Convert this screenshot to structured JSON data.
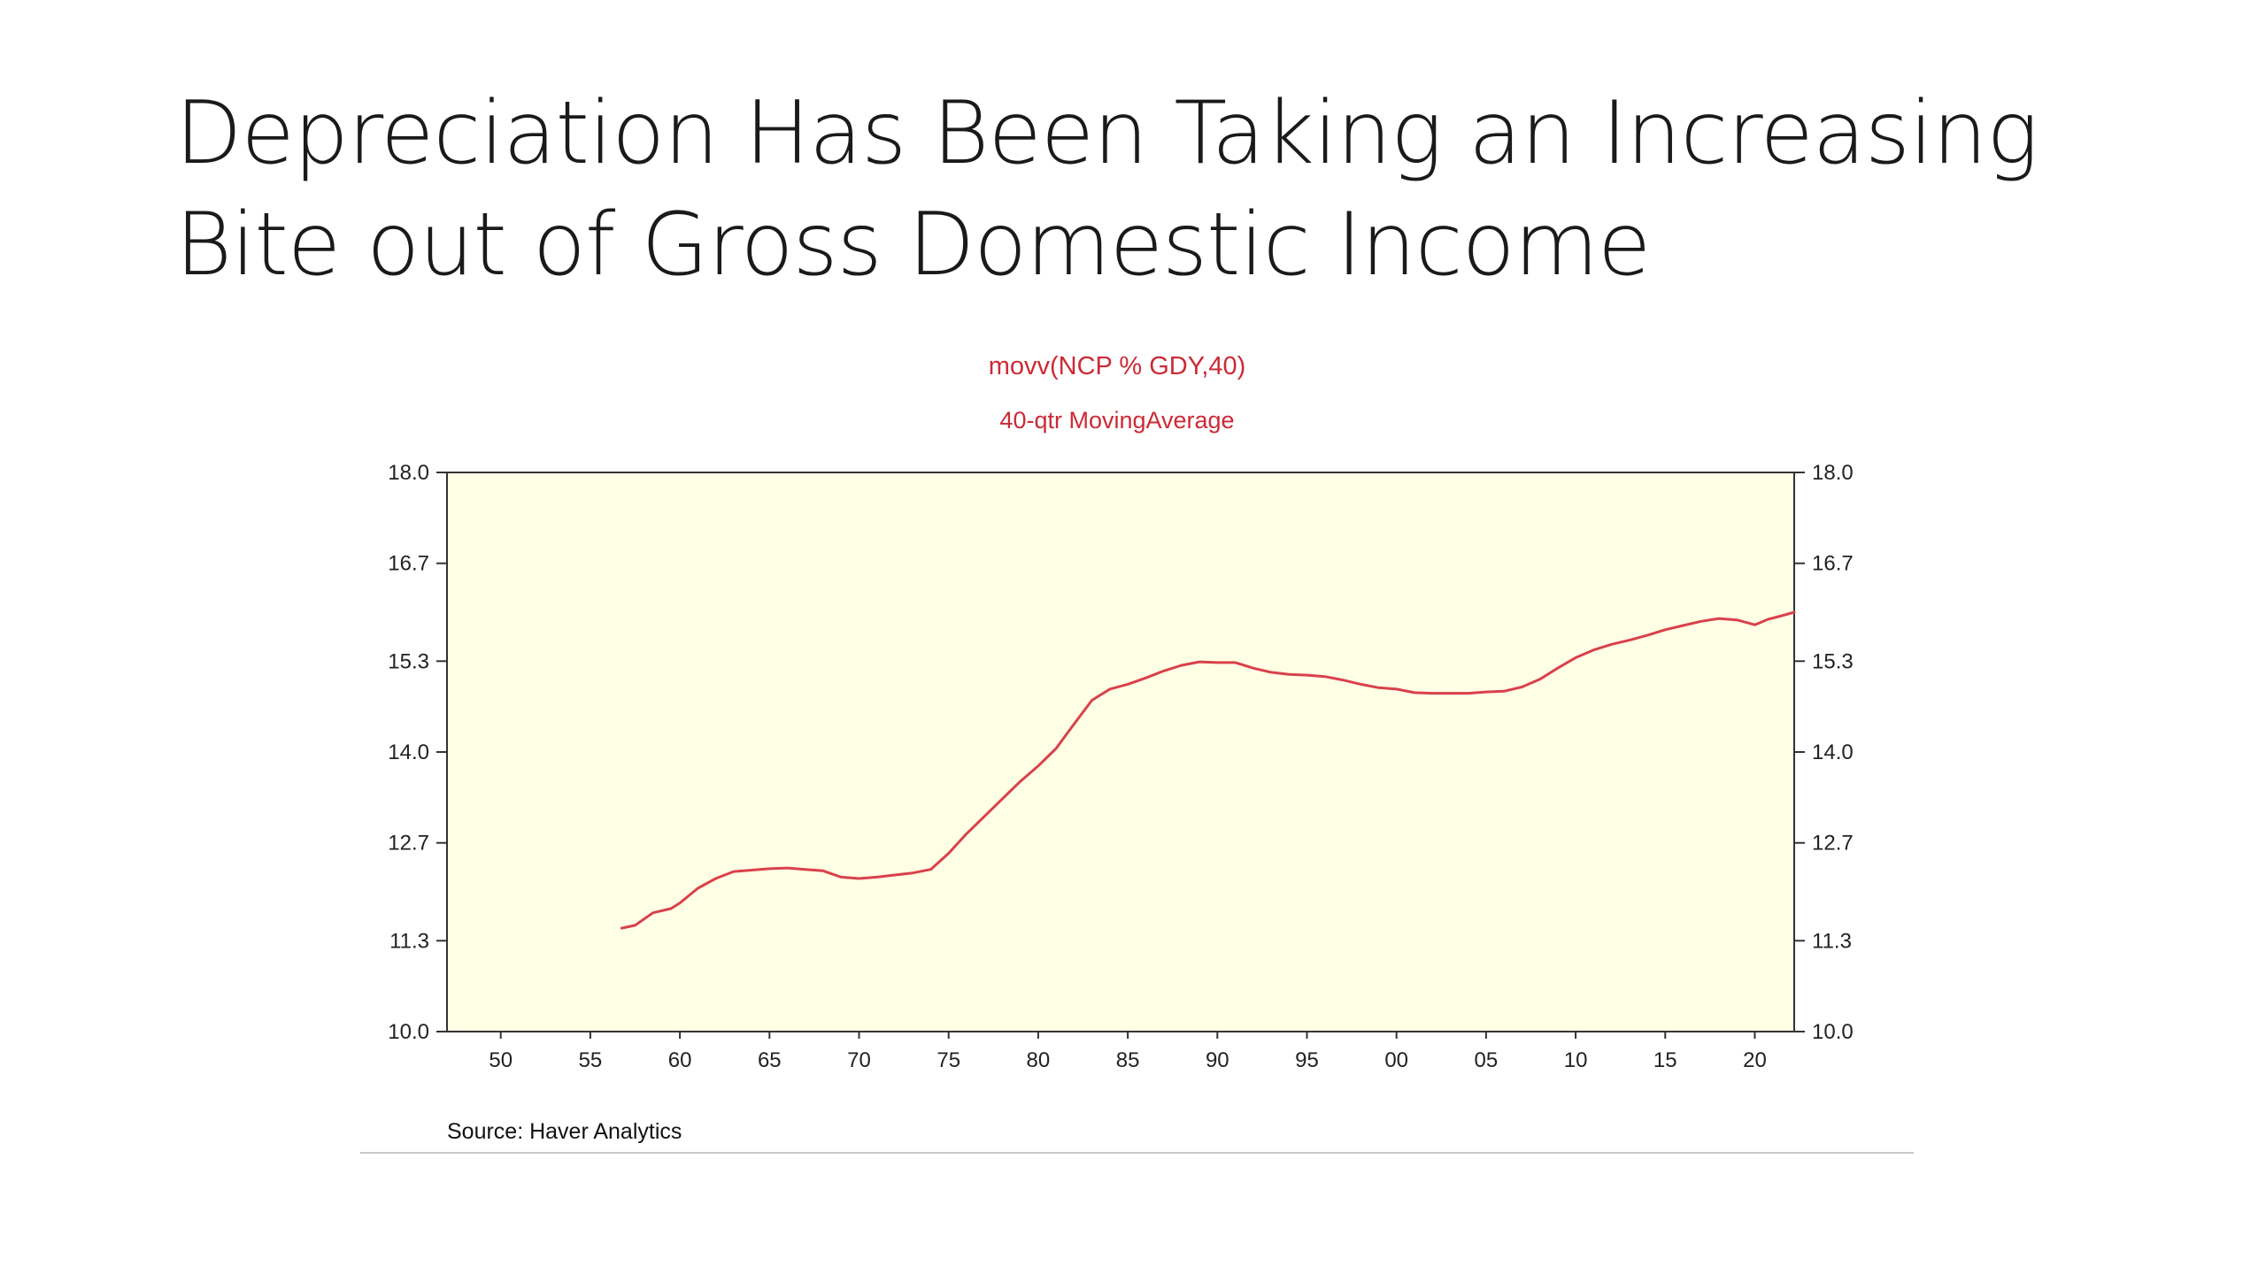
{
  "slide": {
    "title_line1": "Depreciation Has Been Taking an Increasing",
    "title_line2": "Bite out of Gross Domestic Income",
    "source": "Source:  Haver Analytics"
  },
  "colors": {
    "line": "#d9414b",
    "plot_background": "#ffffe5",
    "title": "#cc2a36",
    "axis": "#333333"
  },
  "chart_data": {
    "type": "line",
    "title": "movv(NCP % GDY,40)",
    "subtitle": "40-qtr MovingAverage",
    "xlabel": "",
    "ylabel": "",
    "xlim": [
      1947,
      2022.2
    ],
    "ylim": [
      10.0,
      18.0
    ],
    "y_ticks": [
      10.0,
      11.3,
      12.7,
      14.0,
      15.3,
      16.7,
      18.0
    ],
    "y_tick_labels": [
      "10.0",
      "11.3",
      "12.7",
      "14.0",
      "15.3",
      "16.7",
      "18.0"
    ],
    "x_ticks": [
      1950,
      1955,
      1960,
      1965,
      1970,
      1975,
      1980,
      1985,
      1990,
      1995,
      2000,
      2005,
      2010,
      2015,
      2020
    ],
    "x_tick_labels": [
      "50",
      "55",
      "60",
      "65",
      "70",
      "75",
      "80",
      "85",
      "90",
      "95",
      "00",
      "05",
      "10",
      "15",
      "20"
    ],
    "right_axis": true,
    "grid": false,
    "series": [
      {
        "x": [
          1956.75,
          1957.5,
          1958.5,
          1959.5,
          1960,
          1961,
          1962,
          1963,
          1964,
          1965,
          1966,
          1967,
          1968,
          1969,
          1970,
          1971,
          1972,
          1973,
          1974,
          1975,
          1976,
          1977,
          1978,
          1979,
          1980,
          1981,
          1982,
          1983,
          1984,
          1985,
          1986,
          1987,
          1988,
          1989,
          1990,
          1991,
          1992,
          1993,
          1994,
          1995,
          1996,
          1997,
          1998,
          1999,
          2000,
          2001,
          2002,
          2003,
          2004,
          2005,
          2006,
          2007,
          2008,
          2009,
          2010,
          2011,
          2012,
          2013,
          2014,
          2015,
          2016,
          2017,
          2018,
          2019,
          2020,
          2020.75,
          2021.5,
          2022.2
        ],
        "values": [
          11.48,
          11.52,
          11.7,
          11.76,
          11.84,
          12.05,
          12.19,
          12.29,
          12.31,
          12.33,
          12.34,
          12.32,
          12.3,
          12.21,
          12.19,
          12.21,
          12.24,
          12.27,
          12.32,
          12.55,
          12.83,
          13.08,
          13.33,
          13.58,
          13.8,
          14.05,
          14.4,
          14.74,
          14.9,
          14.97,
          15.06,
          15.16,
          15.24,
          15.29,
          15.28,
          15.28,
          15.2,
          15.14,
          15.11,
          15.1,
          15.08,
          15.03,
          14.97,
          14.92,
          14.9,
          14.85,
          14.84,
          14.84,
          14.84,
          14.86,
          14.87,
          14.93,
          15.04,
          15.2,
          15.35,
          15.46,
          15.54,
          15.6,
          15.67,
          15.75,
          15.81,
          15.87,
          15.91,
          15.89,
          15.82,
          15.9,
          15.95,
          16.0
        ]
      }
    ]
  }
}
